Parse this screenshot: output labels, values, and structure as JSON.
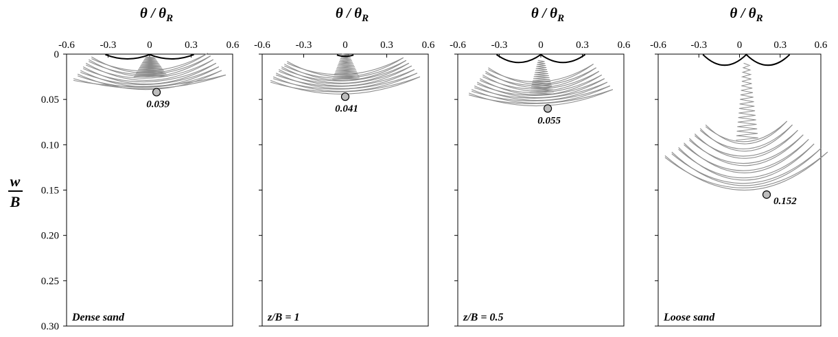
{
  "chart_data": [
    {
      "type": "line",
      "title": "",
      "xlabel": "θ / θR",
      "ylabel": "w/B",
      "xlim": [
        -0.6,
        0.6
      ],
      "ylim": [
        0,
        0.3
      ],
      "y_inverted": true,
      "x_ticks": [
        "-0.6",
        "-0.3",
        "0",
        "0.3",
        "0.6"
      ],
      "y_ticks": [
        "0",
        "0.05",
        "0.10",
        "0.15",
        "0.20",
        "0.25",
        "0.30"
      ],
      "panel_label": "Dense sand",
      "final_point": {
        "x": 0.05,
        "y": 0.042,
        "label": "0.039"
      },
      "arcs": {
        "centerX": 0.0,
        "halfwidths": [
          0.42,
          0.44,
          0.46,
          0.48,
          0.5,
          0.52,
          0.55
        ],
        "tops": [
          0.003,
          0.006,
          0.01,
          0.014,
          0.018,
          0.022,
          0.027
        ],
        "bottoms": [
          0.022,
          0.026,
          0.03,
          0.034,
          0.037,
          0.04,
          0.039
        ],
        "ripple_end": 0.025,
        "ripple_width": 0.27,
        "hinge": 0.003
      }
    },
    {
      "type": "line",
      "title": "",
      "xlabel": "θ / θR",
      "ylabel": "",
      "xlim": [
        -0.6,
        0.6
      ],
      "ylim": [
        0,
        0.3
      ],
      "y_inverted": true,
      "x_ticks": [
        "-0.6",
        "-0.3",
        "0",
        "0.3",
        "0.6"
      ],
      "y_ticks": [
        "0",
        "0.05",
        "0.10",
        "0.15",
        "0.20",
        "0.25",
        "0.30"
      ],
      "panel_label": "z/B = 1",
      "final_point": {
        "x": 0.0,
        "y": 0.047,
        "label": "0.041"
      },
      "arcs": {
        "centerX": 0.0,
        "halfwidths": [
          0.42,
          0.44,
          0.46,
          0.48,
          0.5,
          0.52,
          0.54
        ],
        "tops": [
          0.008,
          0.011,
          0.014,
          0.017,
          0.021,
          0.025,
          0.029
        ],
        "bottoms": [
          0.026,
          0.03,
          0.033,
          0.036,
          0.039,
          0.042,
          0.045
        ],
        "ripple_end": 0.028,
        "ripple_width": 0.22,
        "hinge": 0.0
      }
    },
    {
      "type": "line",
      "title": "",
      "xlabel": "θ / θR",
      "ylabel": "",
      "xlim": [
        -0.6,
        0.6
      ],
      "ylim": [
        0,
        0.3
      ],
      "y_inverted": true,
      "x_ticks": [
        "-0.6",
        "-0.3",
        "0",
        "0.3",
        "0.6"
      ],
      "y_ticks": [
        "0",
        "0.05",
        "0.10",
        "0.15",
        "0.20",
        "0.25",
        "0.30"
      ],
      "panel_label": "z/B = 0.5",
      "final_point": {
        "x": 0.05,
        "y": 0.06,
        "label": "0.055"
      },
      "arcs": {
        "centerX": 0.0,
        "halfwidths": [
          0.38,
          0.4,
          0.42,
          0.44,
          0.46,
          0.48,
          0.5,
          0.52
        ],
        "tops": [
          0.015,
          0.019,
          0.023,
          0.027,
          0.031,
          0.035,
          0.039,
          0.043
        ],
        "bottoms": [
          0.034,
          0.038,
          0.042,
          0.046,
          0.049,
          0.052,
          0.055,
          0.058
        ],
        "ripple_end": 0.045,
        "ripple_width": 0.2,
        "hinge": 0.007
      }
    },
    {
      "type": "line",
      "title": "",
      "xlabel": "θ / θR",
      "ylabel": "",
      "xlim": [
        -0.6,
        0.6
      ],
      "ylim": [
        0,
        0.3
      ],
      "y_inverted": true,
      "x_ticks": [
        "-0.6",
        "-0.3",
        "0",
        "0.3",
        "0.6"
      ],
      "y_ticks": [
        "0",
        "0.05",
        "0.10",
        "0.15",
        "0.20",
        "0.25",
        "0.30"
      ],
      "panel_label": "Loose sand",
      "final_point": {
        "x": 0.2,
        "y": 0.155,
        "label": "0.152"
      },
      "arcs": {
        "centerX": 0.05,
        "halfwidths": [
          0.3,
          0.34,
          0.38,
          0.42,
          0.46,
          0.5,
          0.55,
          0.6
        ],
        "tops": [
          0.078,
          0.082,
          0.088,
          0.093,
          0.098,
          0.103,
          0.108,
          0.112
        ],
        "bottoms": [
          0.1,
          0.108,
          0.116,
          0.124,
          0.132,
          0.14,
          0.146,
          0.151
        ],
        "ripple_end": 0.095,
        "ripple_width": 0.18,
        "hinge": 0.01
      }
    }
  ]
}
